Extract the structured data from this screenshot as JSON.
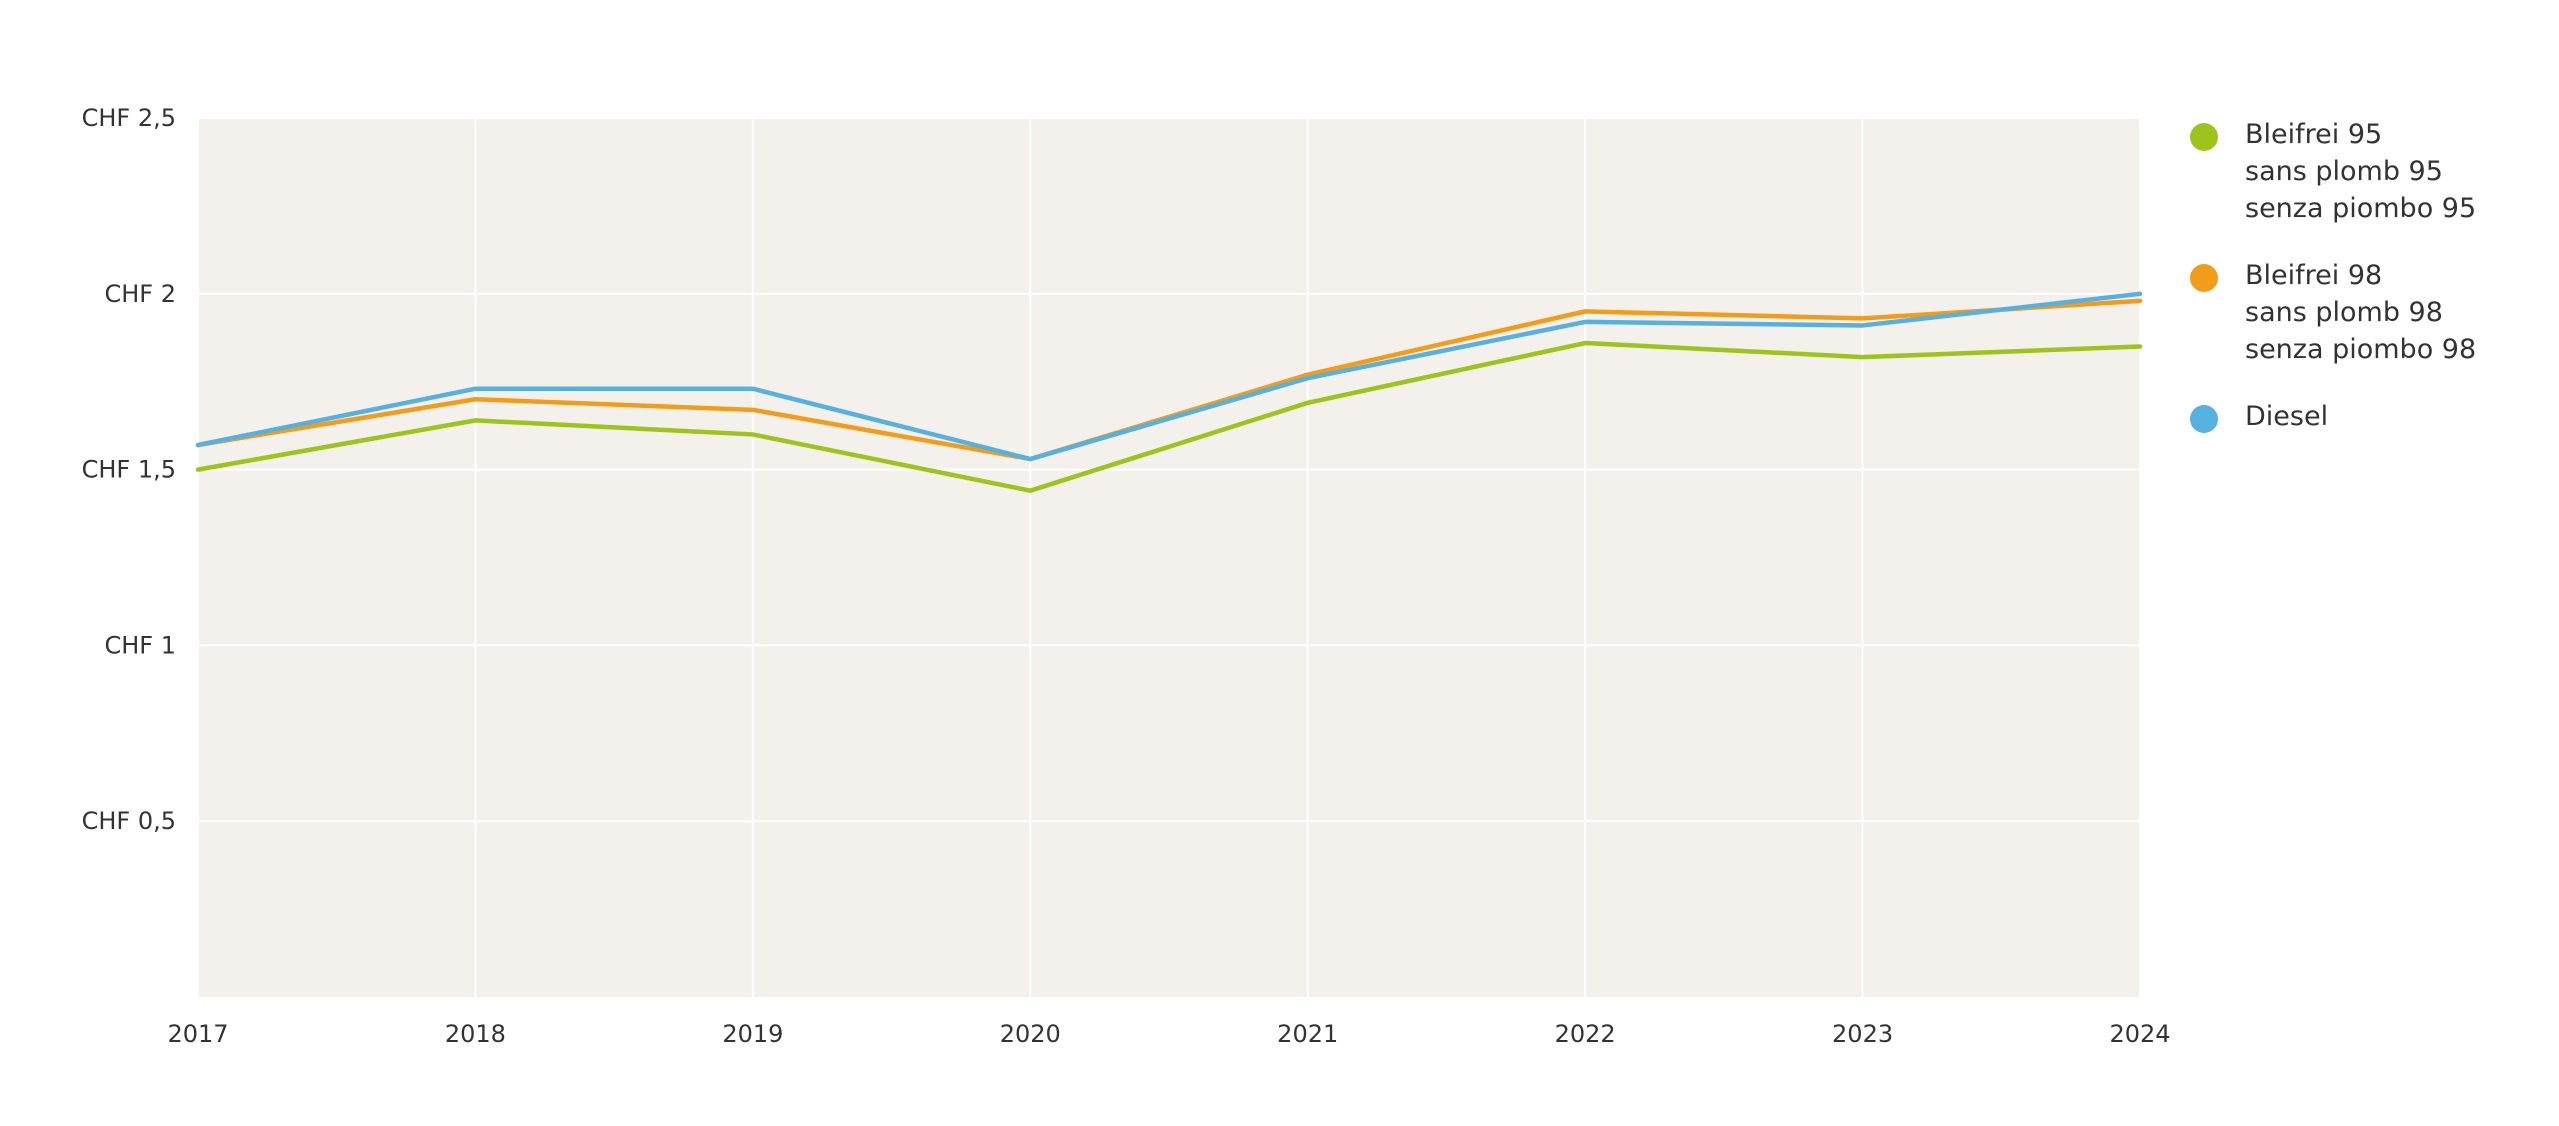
{
  "chart_data": {
    "type": "line",
    "title": "",
    "xlabel": "",
    "ylabel": "",
    "x": [
      "2017",
      "2018",
      "2019",
      "2020",
      "2021",
      "2022",
      "2023",
      "2024"
    ],
    "ylim": [
      0,
      2.5
    ],
    "y_ticks": [
      {
        "value": 0.5,
        "label": "CHF 0,5"
      },
      {
        "value": 1,
        "label": "CHF 1"
      },
      {
        "value": 1.5,
        "label": "CHF 1,5"
      },
      {
        "value": 2,
        "label": "CHF 2"
      },
      {
        "value": 2.5,
        "label": "CHF 2,5"
      }
    ],
    "grid": true,
    "legend_position": "right",
    "plot_background": "#f4f0eb",
    "series": [
      {
        "key": "bleifrei-95",
        "name_lines": [
          "Bleifrei 95",
          "sans plomb 95",
          "senza piombo 95"
        ],
        "color": "#9dc41a",
        "values": [
          1.5,
          1.64,
          1.6,
          1.44,
          1.69,
          1.86,
          1.82,
          1.85
        ]
      },
      {
        "key": "bleifrei-98",
        "name_lines": [
          "Bleifrei 98",
          "sans plomb 98",
          "senza piombo 98"
        ],
        "color": "#f39c1a",
        "values": [
          1.57,
          1.7,
          1.67,
          1.53,
          1.77,
          1.95,
          1.93,
          1.98
        ]
      },
      {
        "key": "diesel",
        "name_lines": [
          "Diesel"
        ],
        "color": "#56b0e0",
        "values": [
          1.57,
          1.73,
          1.73,
          1.53,
          1.76,
          1.92,
          1.91,
          2.0
        ]
      }
    ]
  }
}
